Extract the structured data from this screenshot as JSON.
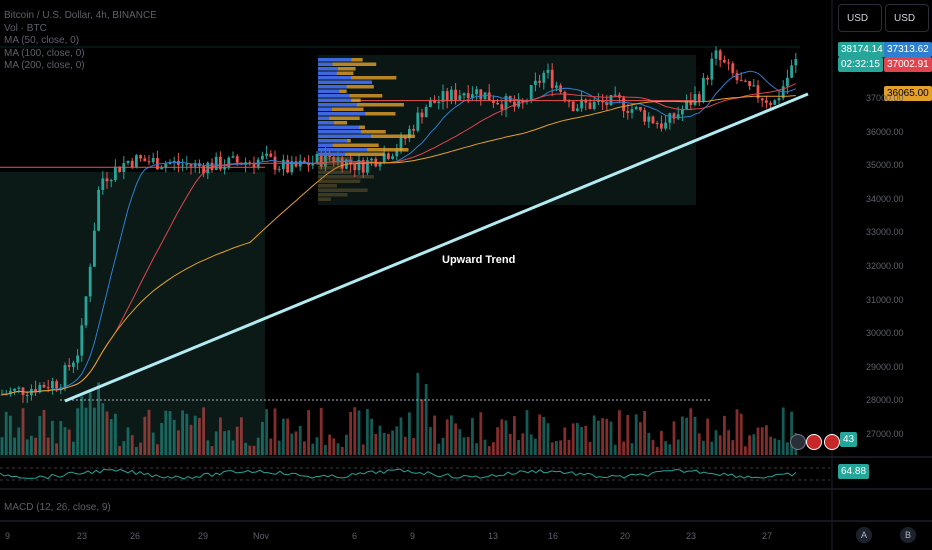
{
  "legend": {
    "symbol": "Bitcoin / U.S. Dollar, 4h, BINANCE",
    "vol": "Vol · BTC",
    "ma50": "MA (50, close, 0)",
    "ma100": "MA (100, close, 0)",
    "ma200": "MA (200, close, 0)"
  },
  "currency": [
    "USD",
    "USD"
  ],
  "annotation": "Upward Trend",
  "macd_label": "MACD (12, 26, close, 9)",
  "price_tags": {
    "last": "38174.14",
    "countdown": "02:32:15",
    "ma50": "37313.62",
    "ma100": "37002.91",
    "ma200": "36065.00",
    "volume": "43",
    "rsi": "64.88"
  },
  "colors": {
    "up": "#26a69a",
    "down": "#ef5350",
    "ma50": "#2e7fd0",
    "ma100": "#e0454f",
    "ma200": "#e3a12a",
    "trend": "#b2ebf2"
  },
  "chart_data": {
    "type": "candlestick",
    "y_axis": [
      "37000.00",
      "36000.00",
      "35000.00",
      "34000.00",
      "33000.00",
      "32000.00",
      "31000.00",
      "30000.00",
      "29000.00",
      "28000.00",
      "27000.00"
    ],
    "x_axis": [
      "9",
      "23",
      "26",
      "29",
      "Nov",
      "6",
      "9",
      "13",
      "16",
      "20",
      "23",
      "27"
    ],
    "ylim": [
      26600,
      38700
    ],
    "horizontal_levels": [
      34970,
      36950
    ],
    "trend_line": {
      "from": {
        "x": "23",
        "y": 28000
      },
      "to": {
        "x": "27",
        "y": 37100
      }
    },
    "ranges": {
      "high": 38300,
      "low": 27800
    }
  },
  "bottom_buttons": [
    "A",
    "B"
  ]
}
